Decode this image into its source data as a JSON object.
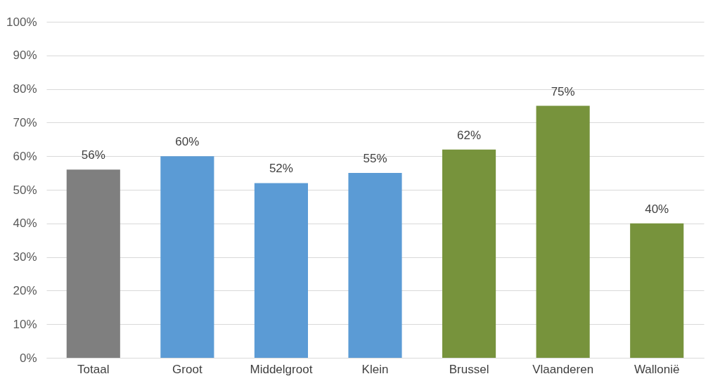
{
  "chart_data": {
    "type": "bar",
    "categories": [
      "Totaal",
      "Groot",
      "Middelgroot",
      "Klein",
      "Brussel",
      "Vlaanderen",
      "Wallonië"
    ],
    "values": [
      56,
      60,
      52,
      55,
      62,
      75,
      40
    ],
    "colors": [
      "#7f7f7f",
      "#5b9bd5",
      "#5b9bd5",
      "#5b9bd5",
      "#77933c",
      "#77933c",
      "#77933c"
    ],
    "value_labels": [
      "56%",
      "60%",
      "52%",
      "55%",
      "62%",
      "75%",
      "40%"
    ],
    "ylim": [
      0,
      100
    ],
    "yticks": [
      {
        "value": 0,
        "label": "0%"
      },
      {
        "value": 10,
        "label": "10%"
      },
      {
        "value": 20,
        "label": "20%"
      },
      {
        "value": 30,
        "label": "30%"
      },
      {
        "value": 40,
        "label": "40%"
      },
      {
        "value": 50,
        "label": "50%"
      },
      {
        "value": 60,
        "label": "60%"
      },
      {
        "value": 70,
        "label": "70%"
      },
      {
        "value": 80,
        "label": "80%"
      },
      {
        "value": 90,
        "label": "90%"
      },
      {
        "value": 100,
        "label": "100%"
      }
    ],
    "grid": "y",
    "legend": false
  }
}
